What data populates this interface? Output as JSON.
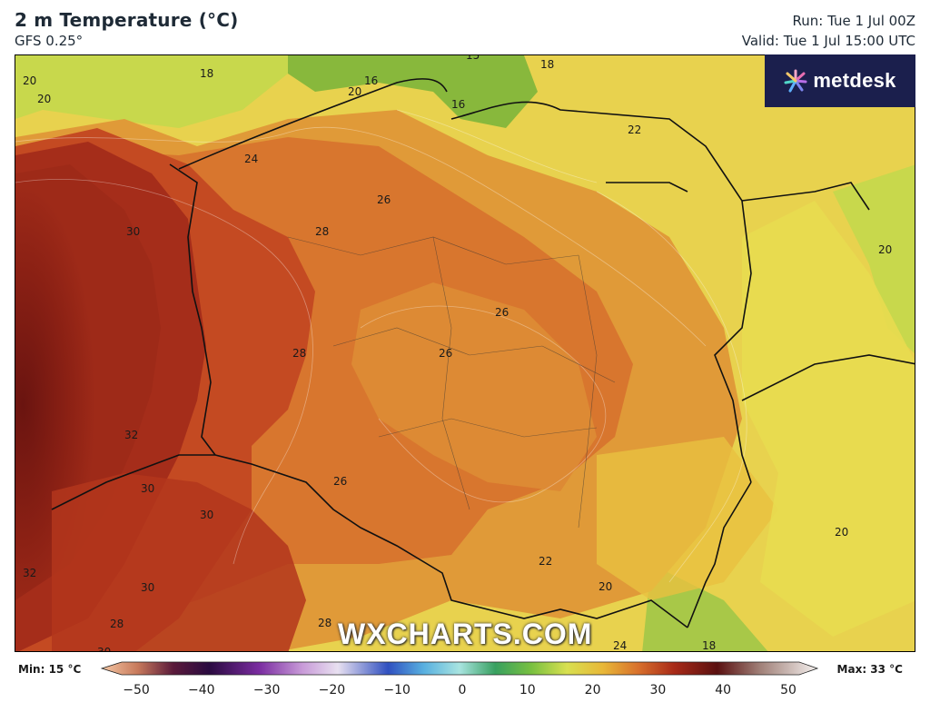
{
  "header": {
    "title": "2 m Temperature (°C)",
    "model": "GFS 0.25°",
    "run": "Run: Tue 1 Jul 00Z",
    "valid": "Valid: Tue 1 Jul 15:00 UTC"
  },
  "brand": {
    "name": "metdesk",
    "icon": "metdesk-star-icon",
    "background": "#1b1f4d"
  },
  "watermark": "WXCHARTS.COM",
  "scale": {
    "min_label": "Min: 15 °C",
    "max_label": "Max: 33 °C",
    "ticks": [
      "−50",
      "−40",
      "−30",
      "−20",
      "−10",
      "0",
      "10",
      "20",
      "30",
      "40",
      "50"
    ]
  },
  "map_labels": {
    "a": "20",
    "b": "20",
    "c": "18",
    "d": "15",
    "e": "18",
    "f": "16",
    "g": "20",
    "h": "16",
    "i": "22",
    "j": "24",
    "k": "26",
    "l": "28",
    "m": "30",
    "n": "20",
    "o": "26",
    "p": "26",
    "q": "28",
    "r": "32",
    "s": "26",
    "t": "30",
    "u": "30",
    "v": "30",
    "w": "32",
    "x": "22",
    "y": "20",
    "z": "20",
    "aa": "28",
    "ab": "28",
    "ac": "30",
    "ad": "24",
    "ae": "18"
  },
  "colors": {
    "very_hot": "#7a1a12",
    "hot": "#a52d1a",
    "warm_red": "#c44a22",
    "orange": "#d8762e",
    "light_orange": "#e09a38",
    "yellow_orange": "#e8c040",
    "yellow": "#e8dc50",
    "yellow_green": "#c8d84c",
    "green": "#88b83c"
  }
}
